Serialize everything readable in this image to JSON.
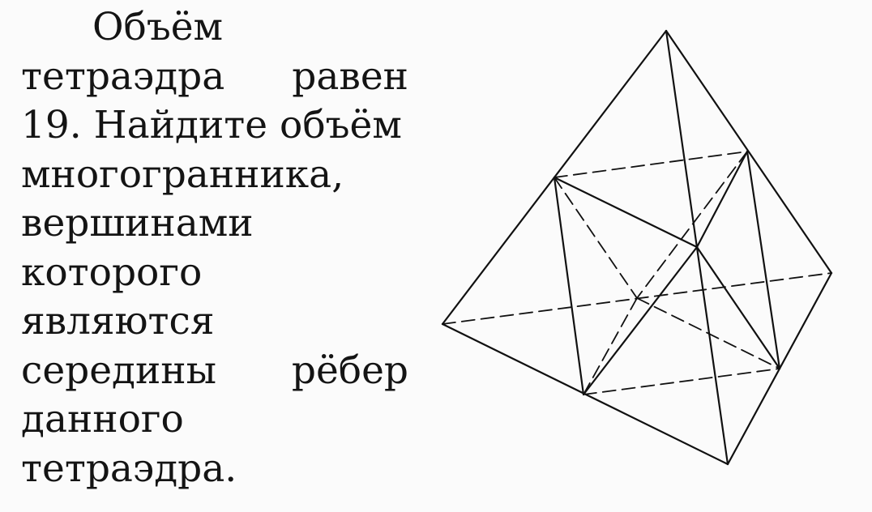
{
  "problem": {
    "lines": [
      {
        "words": [
          "Объём"
        ]
      },
      {
        "words": [
          "тетраэдра",
          "равен"
        ]
      },
      {
        "words": [
          "19. Найдите объём"
        ]
      },
      {
        "words": [
          "многогранника,"
        ]
      },
      {
        "words": [
          "вершинами"
        ]
      },
      {
        "words": [
          "которого"
        ]
      },
      {
        "words": [
          "являются"
        ]
      },
      {
        "words": [
          "середины",
          "рёбер"
        ]
      },
      {
        "words": [
          "данного"
        ]
      },
      {
        "words": [
          "тетраэдра."
        ]
      }
    ]
  },
  "figure": {
    "vertices": [
      "apex",
      "left",
      "right",
      "bottom"
    ],
    "edge_midpoints": [
      "apex-left",
      "apex-right",
      "apex-bottom",
      "left-right",
      "left-bottom",
      "right-bottom"
    ],
    "edges_visible": [
      [
        "apex",
        "left"
      ],
      [
        "apex",
        "right"
      ],
      [
        "apex",
        "bottom"
      ],
      [
        "left",
        "bottom"
      ],
      [
        "right",
        "bottom"
      ]
    ],
    "edges_hidden": [
      [
        "left",
        "right"
      ]
    ],
    "octahedron_edges_visible": [
      [
        "apex-left",
        "apex-bottom"
      ],
      [
        "apex-left",
        "left-bottom"
      ],
      [
        "apex-right",
        "apex-bottom"
      ],
      [
        "apex-right",
        "right-bottom"
      ],
      [
        "apex-bottom",
        "left-bottom"
      ],
      [
        "apex-bottom",
        "right-bottom"
      ]
    ],
    "octahedron_edges_hidden": [
      [
        "apex-left",
        "apex-right"
      ],
      [
        "apex-left",
        "left-right"
      ],
      [
        "apex-right",
        "left-right"
      ],
      [
        "left-right",
        "left-bottom"
      ],
      [
        "left-right",
        "right-bottom"
      ],
      [
        "left-bottom",
        "right-bottom"
      ]
    ]
  }
}
